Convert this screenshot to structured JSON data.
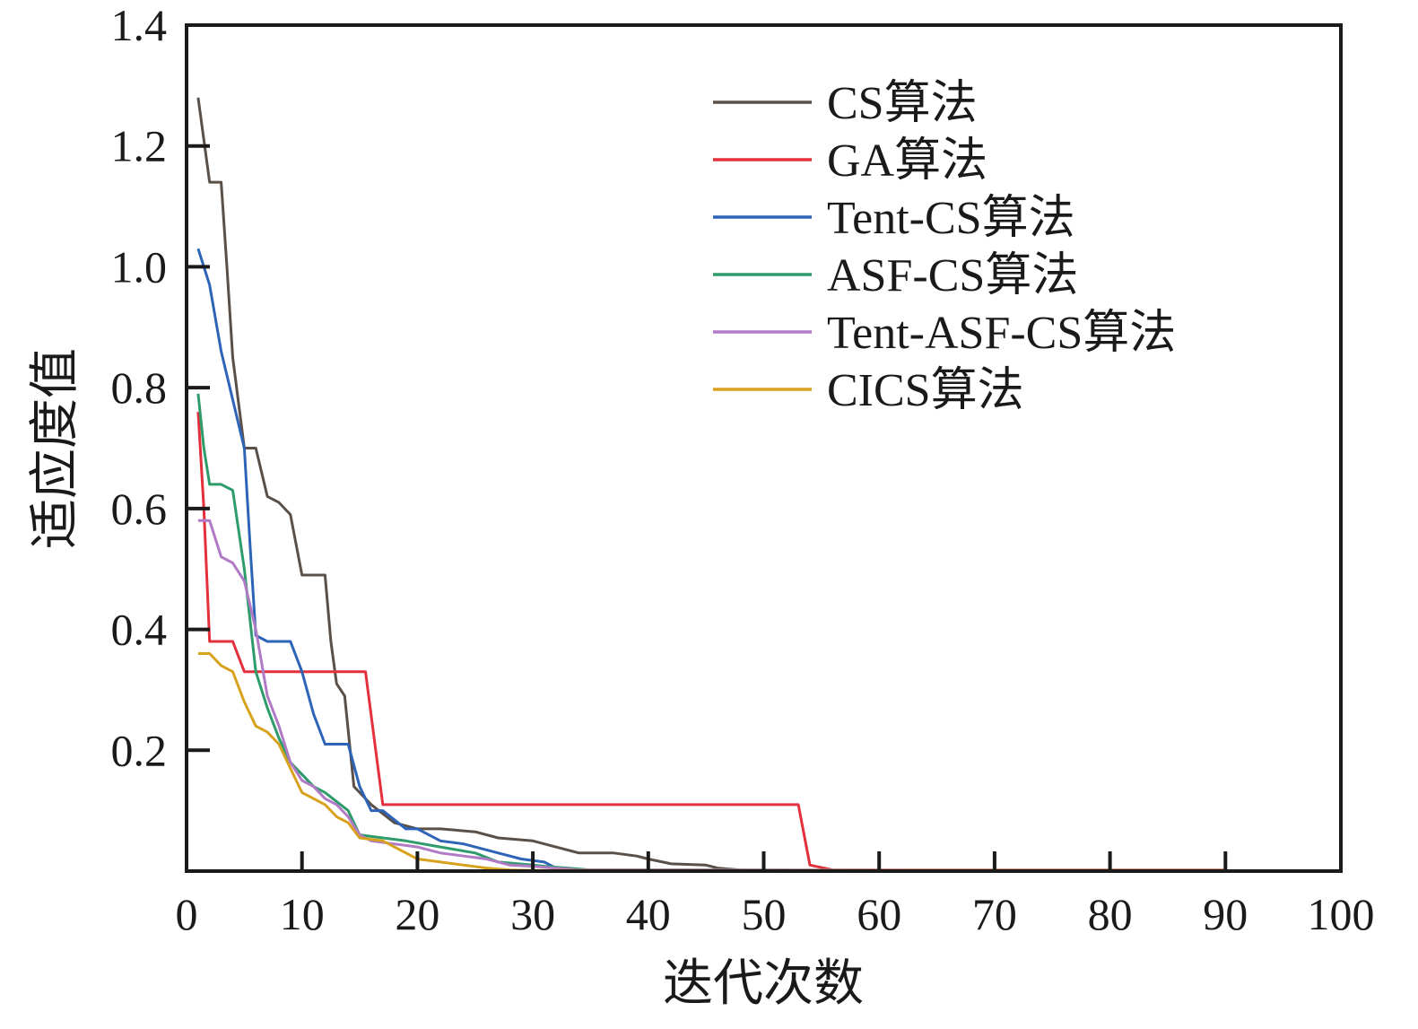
{
  "chart_data": {
    "type": "line",
    "title": "",
    "xlabel": "迭代次数",
    "ylabel": "适应度值",
    "xlim": [
      0,
      100
    ],
    "ylim": [
      0,
      1.4
    ],
    "x_ticks": [
      0,
      10,
      20,
      30,
      40,
      50,
      60,
      70,
      80,
      90,
      100
    ],
    "x_tick_labels": [
      "0",
      "10",
      "20",
      "30",
      "40",
      "50",
      "60",
      "70",
      "80",
      "90",
      "100"
    ],
    "y_ticks": [
      0.2,
      0.4,
      0.6,
      0.8,
      1.0,
      1.2,
      1.4
    ],
    "y_tick_labels": [
      "0.2",
      "0.4",
      "0.6",
      "0.8",
      "1.0",
      "1.2",
      "1.4"
    ],
    "grid": false,
    "legend_position": "top-right",
    "series": [
      {
        "name": "CS算法",
        "color": "#5a5048",
        "points": [
          [
            1,
            1.28
          ],
          [
            2,
            1.14
          ],
          [
            3,
            1.14
          ],
          [
            3.5,
            1.0
          ],
          [
            4,
            0.85
          ],
          [
            5,
            0.7
          ],
          [
            6,
            0.7
          ],
          [
            7,
            0.62
          ],
          [
            8,
            0.61
          ],
          [
            9,
            0.59
          ],
          [
            10,
            0.49
          ],
          [
            11,
            0.49
          ],
          [
            12,
            0.49
          ],
          [
            12.5,
            0.38
          ],
          [
            13,
            0.31
          ],
          [
            13.7,
            0.29
          ],
          [
            14.5,
            0.14
          ],
          [
            15,
            0.13
          ],
          [
            16,
            0.11
          ],
          [
            18,
            0.08
          ],
          [
            20,
            0.07
          ],
          [
            22,
            0.07
          ],
          [
            25,
            0.065
          ],
          [
            27,
            0.055
          ],
          [
            30,
            0.05
          ],
          [
            32,
            0.04
          ],
          [
            34,
            0.03
          ],
          [
            37,
            0.03
          ],
          [
            39,
            0.025
          ],
          [
            40,
            0.02
          ],
          [
            42,
            0.012
          ],
          [
            45,
            0.01
          ],
          [
            46,
            0.005
          ],
          [
            48,
            0.002
          ],
          [
            60,
            0.001
          ],
          [
            90,
            0.001
          ]
        ]
      },
      {
        "name": "GA算法",
        "color": "#e3303c",
        "points": [
          [
            1,
            0.76
          ],
          [
            1.5,
            0.6
          ],
          [
            2,
            0.38
          ],
          [
            4,
            0.38
          ],
          [
            5,
            0.33
          ],
          [
            15.5,
            0.33
          ],
          [
            17,
            0.11
          ],
          [
            53,
            0.11
          ],
          [
            54,
            0.01
          ],
          [
            56,
            0.002
          ],
          [
            90,
            0.002
          ]
        ]
      },
      {
        "name": "Tent-CS算法",
        "color": "#2e64b8",
        "points": [
          [
            1,
            1.03
          ],
          [
            2,
            0.97
          ],
          [
            3,
            0.86
          ],
          [
            4,
            0.78
          ],
          [
            5,
            0.7
          ],
          [
            5.5,
            0.54
          ],
          [
            6,
            0.39
          ],
          [
            7,
            0.38
          ],
          [
            8,
            0.38
          ],
          [
            9,
            0.38
          ],
          [
            10,
            0.33
          ],
          [
            11,
            0.26
          ],
          [
            12,
            0.21
          ],
          [
            13,
            0.21
          ],
          [
            14,
            0.21
          ],
          [
            15,
            0.14
          ],
          [
            16,
            0.1
          ],
          [
            17,
            0.1
          ],
          [
            19,
            0.07
          ],
          [
            20,
            0.07
          ],
          [
            22,
            0.05
          ],
          [
            24,
            0.045
          ],
          [
            27,
            0.03
          ],
          [
            29,
            0.02
          ],
          [
            31,
            0.015
          ],
          [
            32,
            0.005
          ],
          [
            34,
            0.002
          ],
          [
            90,
            0.001
          ]
        ]
      },
      {
        "name": "ASF-CS算法",
        "color": "#2e9c6a",
        "points": [
          [
            1,
            0.79
          ],
          [
            1.5,
            0.7
          ],
          [
            2,
            0.64
          ],
          [
            3,
            0.64
          ],
          [
            4,
            0.63
          ],
          [
            5,
            0.5
          ],
          [
            6,
            0.33
          ],
          [
            7,
            0.27
          ],
          [
            8,
            0.22
          ],
          [
            9,
            0.18
          ],
          [
            10,
            0.16
          ],
          [
            11,
            0.14
          ],
          [
            12,
            0.13
          ],
          [
            14,
            0.1
          ],
          [
            15,
            0.06
          ],
          [
            17,
            0.055
          ],
          [
            19,
            0.05
          ],
          [
            22,
            0.04
          ],
          [
            25,
            0.03
          ],
          [
            27,
            0.015
          ],
          [
            30,
            0.01
          ],
          [
            31,
            0.008
          ],
          [
            33,
            0.005
          ],
          [
            35,
            0.002
          ],
          [
            90,
            0.001
          ]
        ]
      },
      {
        "name": "Tent-ASF-CS算法",
        "color": "#b07ac4",
        "points": [
          [
            1,
            0.58
          ],
          [
            2,
            0.58
          ],
          [
            3,
            0.52
          ],
          [
            4,
            0.51
          ],
          [
            5,
            0.48
          ],
          [
            6,
            0.4
          ],
          [
            7,
            0.29
          ],
          [
            8,
            0.24
          ],
          [
            9,
            0.18
          ],
          [
            10,
            0.15
          ],
          [
            11,
            0.14
          ],
          [
            12,
            0.12
          ],
          [
            13,
            0.11
          ],
          [
            14,
            0.09
          ],
          [
            15,
            0.06
          ],
          [
            16,
            0.05
          ],
          [
            18,
            0.045
          ],
          [
            20,
            0.04
          ],
          [
            22,
            0.03
          ],
          [
            24,
            0.025
          ],
          [
            26,
            0.02
          ],
          [
            28,
            0.01
          ],
          [
            30,
            0.008
          ],
          [
            32,
            0.005
          ],
          [
            34,
            0.002
          ],
          [
            90,
            0.001
          ]
        ]
      },
      {
        "name": "CICS算法",
        "color": "#d8a21e",
        "points": [
          [
            1,
            0.36
          ],
          [
            2,
            0.36
          ],
          [
            3,
            0.34
          ],
          [
            4,
            0.33
          ],
          [
            5,
            0.28
          ],
          [
            6,
            0.24
          ],
          [
            7,
            0.23
          ],
          [
            8,
            0.21
          ],
          [
            9,
            0.17
          ],
          [
            10,
            0.13
          ],
          [
            11,
            0.12
          ],
          [
            12,
            0.11
          ],
          [
            13,
            0.09
          ],
          [
            14,
            0.08
          ],
          [
            15,
            0.055
          ],
          [
            17,
            0.05
          ],
          [
            18,
            0.04
          ],
          [
            20,
            0.02
          ],
          [
            22,
            0.015
          ],
          [
            24,
            0.01
          ],
          [
            26,
            0.005
          ],
          [
            28,
            0.002
          ],
          [
            30,
            0.001
          ],
          [
            90,
            0.001
          ]
        ]
      }
    ]
  }
}
